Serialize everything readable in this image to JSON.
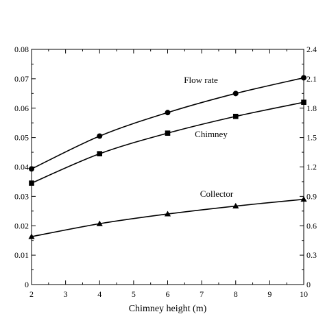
{
  "chart_data": {
    "type": "line",
    "xlabel": "Chimney height (m)",
    "ylabel_left": "",
    "ylabel_right": "",
    "xlim": [
      2,
      10
    ],
    "ylim_left": [
      0,
      0.08
    ],
    "ylim_right": [
      0,
      2.4
    ],
    "x_ticks": [
      "2",
      "3",
      "4",
      "5",
      "6",
      "7",
      "8",
      "9",
      "10"
    ],
    "y_left_ticks": [
      "0",
      "0.01",
      "0.02",
      "0.03",
      "0.04",
      "0.05",
      "0.06",
      "0.07",
      "0.08"
    ],
    "y_right_ticks": [
      "0",
      "0.3",
      "0.6",
      "0.9",
      "1.2",
      "1.5",
      "1.8",
      "2.1",
      "2.4"
    ],
    "grid": false,
    "series": [
      {
        "name": "Flow rate",
        "axis": "right",
        "marker": "circle",
        "x": [
          2,
          4,
          6,
          8,
          10
        ],
        "values": [
          1.18,
          1.515,
          1.755,
          1.95,
          2.11
        ]
      },
      {
        "name": "Chimney",
        "axis": "left",
        "marker": "square",
        "x": [
          2,
          4,
          6,
          8,
          10
        ],
        "values": [
          0.0345,
          0.0445,
          0.0515,
          0.0572,
          0.062
        ]
      },
      {
        "name": "Collector",
        "axis": "left",
        "marker": "triangle",
        "x": [
          2,
          4,
          6,
          8,
          10
        ],
        "values": [
          0.0163,
          0.0207,
          0.024,
          0.0267,
          0.029
        ]
      }
    ],
    "annotations": [
      {
        "text": "Flow rate",
        "series": "Flow rate"
      },
      {
        "text": "Chimney",
        "series": "Chimney"
      },
      {
        "text": "Collector",
        "series": "Collector"
      }
    ]
  }
}
